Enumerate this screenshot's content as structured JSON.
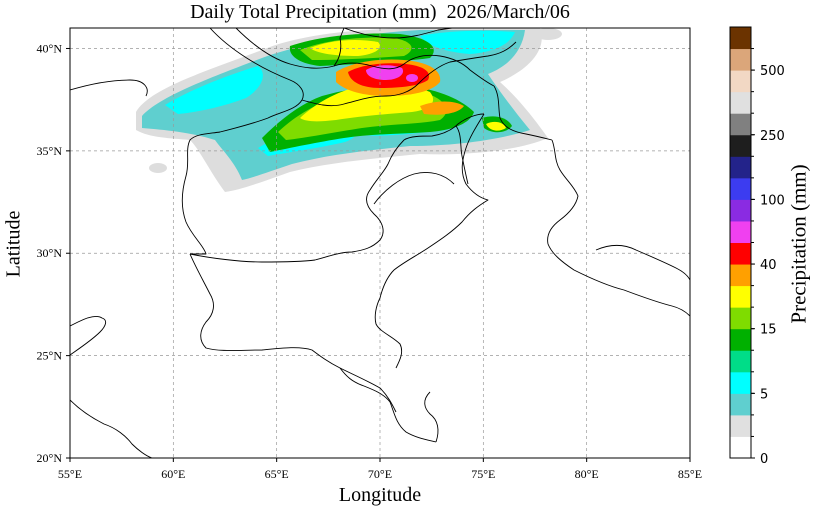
{
  "title": "Daily Total Precipitation (mm)  2026/March/06",
  "xlabel": "Longitude",
  "ylabel": "Latitude",
  "colorbar": {
    "label": "Precipitation (mm)",
    "tick_labels": [
      "0",
      "5",
      "15",
      "40",
      "100",
      "250",
      "500"
    ],
    "colors": [
      "#ffffff",
      "#e0e0e0",
      "#5fcfcf",
      "#00ffff",
      "#00dd88",
      "#00b000",
      "#7fdc00",
      "#ffff00",
      "#ffa000",
      "#ff0000",
      "#f040f0",
      "#8a2be2",
      "#3c3cf0",
      "#23238a",
      "#1e1e1e",
      "#808080",
      "#e0e0e0",
      "#f2d8c4",
      "#dba67a",
      "#6b3300"
    ]
  },
  "map": {
    "lon_range": [
      55,
      85
    ],
    "lat_range": [
      20,
      41
    ],
    "x_ticks": [
      55,
      60,
      65,
      70,
      75,
      80,
      85
    ],
    "y_ticks": [
      20,
      25,
      30,
      35,
      40
    ],
    "x_tick_labels": [
      "55°E",
      "60°E",
      "65°E",
      "70°E",
      "75°E",
      "80°E",
      "85°E"
    ],
    "y_tick_labels": [
      "20°N",
      "25°N",
      "30°N",
      "35°N",
      "40°N"
    ],
    "gridlines": true
  }
}
